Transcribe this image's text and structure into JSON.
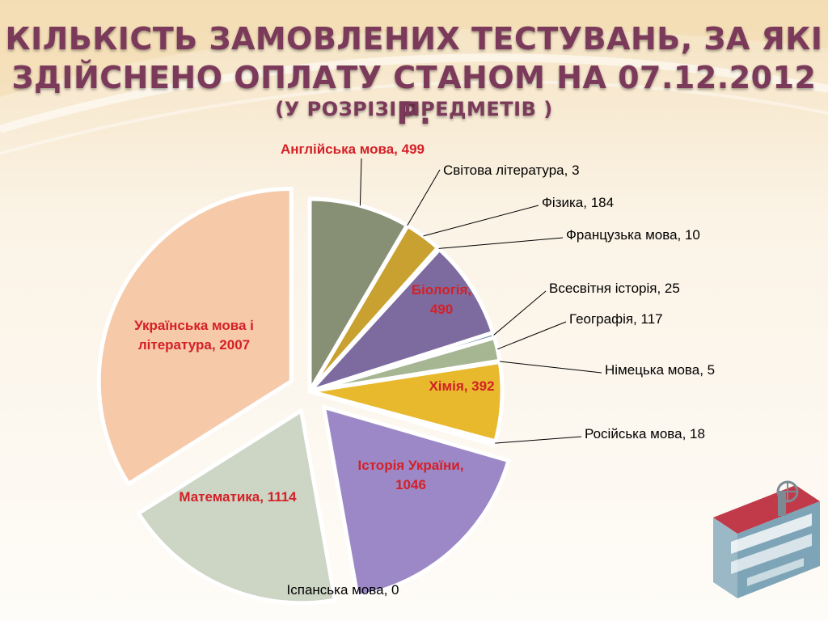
{
  "title": {
    "line1": "КІЛЬКІСТЬ ЗАМОВЛЕНИХ ТЕСТУВАНЬ, ЗА ЯКІ",
    "line2": "ЗДІЙСНЕНО ОПЛАТУ СТАНОМ НА 07.12.2012 Р.",
    "line3": "(У РОЗРІЗІ ПРЕДМЕТІВ )"
  },
  "chart_data": {
    "type": "pie",
    "legend": "none",
    "slices": [
      {
        "label": "Англійська мова, 499",
        "name": "Англійська мова",
        "value": 499,
        "color": "#878f74",
        "exploded": false,
        "label_color": "#d42027"
      },
      {
        "label": "Світова література, 3",
        "name": "Світова література",
        "value": 3,
        "color": "#b08d55",
        "exploded": false
      },
      {
        "label": "Фізика, 184",
        "name": "Фізика",
        "value": 184,
        "color": "#c9a130",
        "exploded": false
      },
      {
        "label": "Французька мова, 10",
        "name": "Французька мова",
        "value": 10,
        "color": "#c8b4be",
        "exploded": false
      },
      {
        "label": [
          "Біологія,",
          "490"
        ],
        "name": "Біологія",
        "value": 490,
        "color": "#7d6b9f",
        "exploded": false,
        "inside": true
      },
      {
        "label": "Всесвітня історія, 25",
        "name": "Всесвітня історія",
        "value": 25,
        "color": "#6a86a6",
        "exploded": false
      },
      {
        "label": "Географія, 117",
        "name": "Географія",
        "value": 117,
        "color": "#a6b592",
        "exploded": false
      },
      {
        "label": "Німецька мова, 5",
        "name": "Німецька мова",
        "value": 5,
        "color": "#d9c48a",
        "exploded": false
      },
      {
        "label": "Хімія, 392",
        "name": "Хімія",
        "value": 392,
        "color": "#e8b92c",
        "exploded": false,
        "inside": true
      },
      {
        "label": "Російська мова, 18",
        "name": "Російська мова",
        "value": 18,
        "color": "#c9a0b6",
        "exploded": false
      },
      {
        "label": [
          "Історія України,",
          "1046"
        ],
        "name": "Історія України",
        "value": 1046,
        "color": "#9c88c6",
        "exploded": true,
        "inside": true
      },
      {
        "label": "Іспанська мова, 0",
        "name": "Іспанська мова",
        "value": 0,
        "color": "#cccccc",
        "exploded": false
      },
      {
        "label": "Математика, 1114",
        "name": "Математика",
        "value": 1114,
        "color": "#cdd5c5",
        "exploded": true,
        "inside": true
      },
      {
        "label": [
          "Українська мова і",
          "література, 2007"
        ],
        "name": "Українська мова і література",
        "value": 2007,
        "color": "#f6c9a8",
        "exploded": true,
        "inside": true
      }
    ]
  },
  "logo": {
    "icon": "university-logo-icon"
  }
}
